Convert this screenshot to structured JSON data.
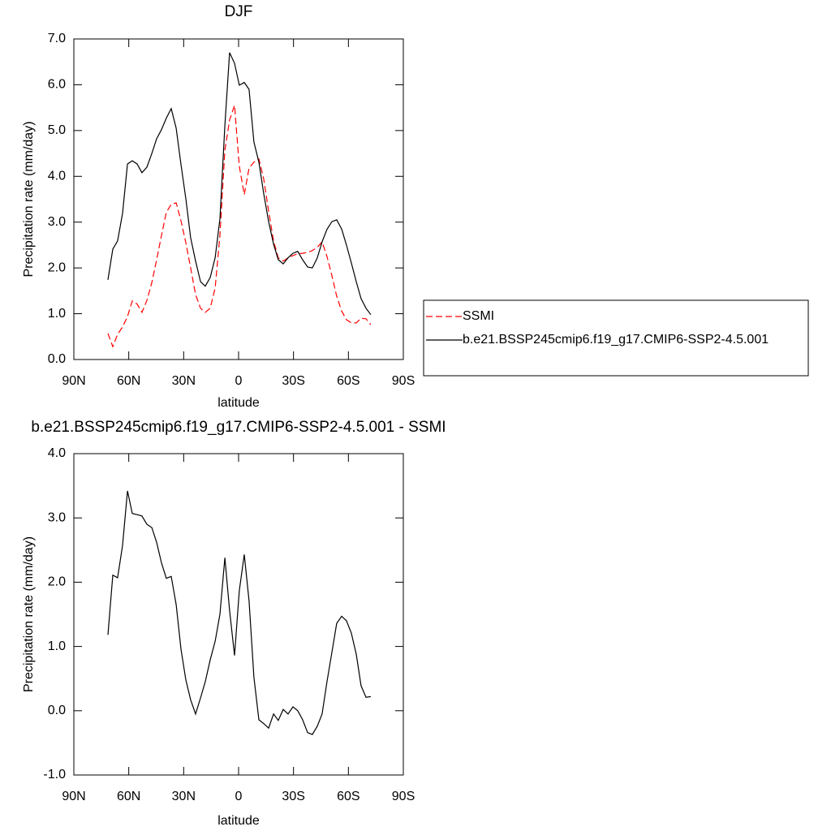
{
  "chart_data": [
    {
      "type": "line",
      "title": "DJF",
      "x_label": "latitude",
      "y_label": "Precipitation rate (mm/day)",
      "x": [
        71.4,
        68.7,
        66.1,
        63.4,
        60.7,
        58.1,
        55.4,
        52.8,
        50.1,
        47.4,
        44.8,
        42.1,
        39.5,
        36.8,
        34.1,
        31.5,
        28.8,
        26.2,
        23.5,
        20.8,
        18.2,
        15.5,
        12.8,
        10.2,
        7.5,
        4.9,
        2.2,
        -0.4,
        -3.1,
        -5.7,
        -8.4,
        -11.1,
        -13.7,
        -16.4,
        -19.1,
        -21.7,
        -24.4,
        -27.0,
        -29.7,
        -32.3,
        -35.0,
        -37.7,
        -40.3,
        -43.0,
        -45.6,
        -48.3,
        -51.0,
        -53.6,
        -56.3,
        -58.9,
        -61.6,
        -64.3,
        -66.9,
        -69.6,
        -72.2
      ],
      "series": [
        {
          "name": "SSMI",
          "color": "#ff0000",
          "dashed": true,
          "values": [
            0.57,
            0.28,
            0.55,
            0.71,
            0.94,
            1.28,
            1.21,
            1.03,
            1.29,
            1.68,
            2.18,
            2.71,
            3.21,
            3.39,
            3.42,
            3.03,
            2.55,
            2.0,
            1.42,
            1.12,
            1.03,
            1.12,
            1.56,
            2.71,
            4.57,
            5.23,
            5.55,
            4.22,
            3.6,
            4.18,
            4.31,
            4.38,
            3.95,
            3.24,
            2.59,
            2.22,
            2.15,
            2.22,
            2.27,
            2.31,
            2.32,
            2.34,
            2.38,
            2.45,
            2.57,
            2.25,
            1.83,
            1.38,
            1.06,
            0.87,
            0.8,
            0.8,
            0.9,
            0.89,
            0.76
          ]
        },
        {
          "name": "b.e21.BSSP245cmip6.f19_g17.CMIP6-SSP2-4.5.001",
          "color": "#000000",
          "dashed": false,
          "values": [
            1.74,
            2.41,
            2.59,
            3.19,
            4.27,
            4.34,
            4.27,
            4.08,
            4.2,
            4.5,
            4.82,
            5.02,
            5.27,
            5.48,
            5.05,
            4.26,
            3.51,
            2.66,
            2.15,
            1.7,
            1.6,
            1.79,
            2.22,
            3.07,
            5.11,
            6.7,
            6.47,
            5.99,
            6.05,
            5.9,
            4.75,
            4.31,
            3.63,
            3.01,
            2.52,
            2.18,
            2.09,
            2.22,
            2.32,
            2.36,
            2.18,
            2.02,
            2.0,
            2.22,
            2.57,
            2.84,
            3.01,
            3.05,
            2.85,
            2.5,
            2.11,
            1.7,
            1.33,
            1.12,
            0.98
          ]
        }
      ],
      "xlim": [
        90,
        -90
      ],
      "xticks": [
        {
          "value": 90,
          "label": "90N"
        },
        {
          "value": 60,
          "label": "60N"
        },
        {
          "value": 30,
          "label": "30N"
        },
        0,
        {
          "value": -30,
          "label": "30S"
        },
        {
          "value": -60,
          "label": "60S"
        },
        {
          "value": -90,
          "label": "90S"
        }
      ],
      "ylim": [
        0,
        7
      ],
      "yticks": [
        {
          "value": 0,
          "label": "0.0"
        },
        {
          "value": 1,
          "label": "1.0"
        },
        {
          "value": 2,
          "label": "2.0"
        },
        {
          "value": 3,
          "label": "3.0"
        },
        {
          "value": 4,
          "label": "4.0"
        },
        {
          "value": 5,
          "label": "5.0"
        },
        {
          "value": 6,
          "label": "6.0"
        },
        {
          "value": 7,
          "label": "7.0"
        }
      ],
      "legend": "right"
    },
    {
      "type": "line",
      "title": "b.e21.BSSP245cmip6.f19_g17.CMIP6-SSP2-4.5.001 - SSMI",
      "x_label": "latitude",
      "y_label": "Precipitation rate (mm/day)",
      "x": [
        71.4,
        68.7,
        66.1,
        63.4,
        60.7,
        58.1,
        55.4,
        52.8,
        50.1,
        47.4,
        44.8,
        42.1,
        39.5,
        36.8,
        34.1,
        31.5,
        28.8,
        26.2,
        23.5,
        20.8,
        18.2,
        15.5,
        12.8,
        10.2,
        7.5,
        4.9,
        2.2,
        -0.4,
        -3.1,
        -5.7,
        -8.4,
        -11.1,
        -13.7,
        -16.4,
        -19.1,
        -21.7,
        -24.4,
        -27.0,
        -29.7,
        -32.3,
        -35.0,
        -37.7,
        -40.3,
        -43.0,
        -45.6,
        -48.3,
        -51.0,
        -53.6,
        -56.3,
        -58.9,
        -61.6,
        -64.3,
        -66.9,
        -69.6,
        -72.2
      ],
      "series": [
        {
          "color": "#000000",
          "dashed": false,
          "values": [
            1.18,
            2.11,
            2.07,
            2.57,
            3.42,
            3.07,
            3.05,
            3.03,
            2.9,
            2.85,
            2.62,
            2.3,
            2.06,
            2.09,
            1.65,
            0.96,
            0.48,
            0.17,
            -0.05,
            0.2,
            0.45,
            0.79,
            1.08,
            1.5,
            2.38,
            1.56,
            0.86,
            1.87,
            2.43,
            1.71,
            0.52,
            -0.14,
            -0.2,
            -0.27,
            -0.05,
            -0.15,
            0.02,
            -0.05,
            0.06,
            0.0,
            -0.14,
            -0.34,
            -0.37,
            -0.24,
            -0.05,
            0.45,
            0.91,
            1.36,
            1.47,
            1.4,
            1.21,
            0.88,
            0.39,
            0.21,
            0.22
          ]
        }
      ],
      "xlim": [
        90,
        -90
      ],
      "xticks": [
        {
          "value": 90,
          "label": "90N"
        },
        {
          "value": 60,
          "label": "60N"
        },
        {
          "value": 30,
          "label": "30N"
        },
        0,
        {
          "value": -30,
          "label": "30S"
        },
        {
          "value": -60,
          "label": "60S"
        },
        {
          "value": -90,
          "label": "90S"
        }
      ],
      "ylim": [
        -1,
        4
      ],
      "yticks": [
        {
          "value": -1,
          "label": "-1.0"
        },
        {
          "value": 0,
          "label": "0.0"
        },
        {
          "value": 1,
          "label": "1.0"
        },
        {
          "value": 2,
          "label": "2.0"
        },
        {
          "value": 3,
          "label": "3.0"
        },
        {
          "value": 4,
          "label": "4.0"
        }
      ]
    }
  ]
}
